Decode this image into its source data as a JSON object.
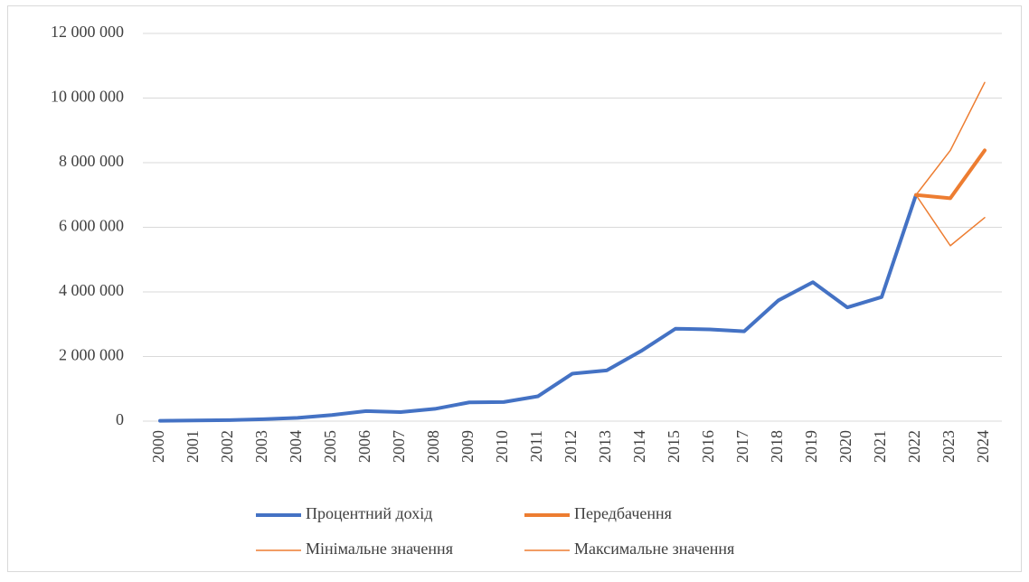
{
  "chart_data": {
    "type": "line",
    "categories": [
      "2000",
      "2001",
      "2002",
      "2003",
      "2004",
      "2005",
      "2006",
      "2007",
      "2008",
      "2009",
      "2010",
      "2011",
      "2012",
      "2013",
      "2014",
      "2015",
      "2016",
      "2017",
      "2018",
      "2019",
      "2020",
      "2021",
      "2022",
      "2023",
      "2024"
    ],
    "series": [
      {
        "name": "Процентний дохід",
        "color": "#4472c4",
        "width": 4,
        "values": [
          10000,
          20000,
          30000,
          60000,
          100000,
          190000,
          310000,
          280000,
          380000,
          580000,
          590000,
          770000,
          1470000,
          1570000,
          2170000,
          2860000,
          2840000,
          2780000,
          3740000,
          4300000,
          3520000,
          3840000,
          7000000,
          null,
          null
        ]
      },
      {
        "name": "Передбачення",
        "color": "#ed7d31",
        "width": 4,
        "values": [
          null,
          null,
          null,
          null,
          null,
          null,
          null,
          null,
          null,
          null,
          null,
          null,
          null,
          null,
          null,
          null,
          null,
          null,
          null,
          null,
          null,
          null,
          7000000,
          6900000,
          8380000
        ]
      },
      {
        "name": "Мінімальне значення",
        "color": "#ed7d31",
        "width": 1.5,
        "values": [
          null,
          null,
          null,
          null,
          null,
          null,
          null,
          null,
          null,
          null,
          null,
          null,
          null,
          null,
          null,
          null,
          null,
          null,
          null,
          null,
          null,
          null,
          7000000,
          5430000,
          6300000
        ]
      },
      {
        "name": "Максимальне значення",
        "color": "#ed7d31",
        "width": 1.5,
        "values": [
          null,
          null,
          null,
          null,
          null,
          null,
          null,
          null,
          null,
          null,
          null,
          null,
          null,
          null,
          null,
          null,
          null,
          null,
          null,
          null,
          null,
          null,
          7000000,
          8380000,
          10480000
        ]
      }
    ],
    "ylim": [
      0,
      12000000
    ],
    "yticks": [
      0,
      {
        "value": 2000000,
        "label": "2 000 000"
      },
      {
        "value": 4000000,
        "label": "4 000 000"
      },
      {
        "value": 6000000,
        "label": "6 000 000"
      },
      {
        "value": 8000000,
        "label": "8 000 000"
      },
      {
        "value": 10000000,
        "label": "10 000 000"
      },
      {
        "value": 12000000,
        "label": "12 000 000"
      }
    ],
    "grid": true,
    "legend": "bottom"
  }
}
